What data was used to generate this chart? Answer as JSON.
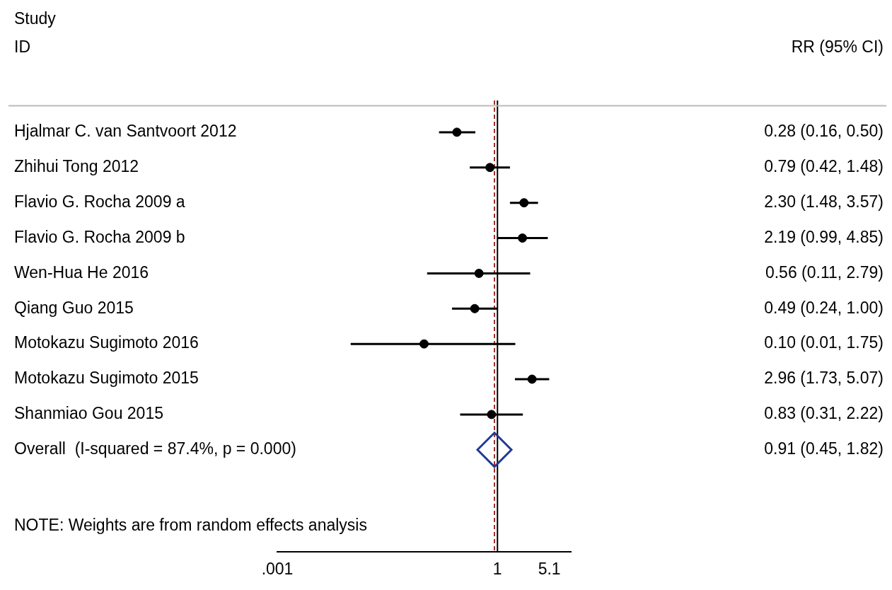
{
  "chart_data": {
    "type": "scatter",
    "orientation": "horizontal",
    "categories": [
      "Hjalmar C. van Santvoort 2012",
      "Zhihui Tong 2012",
      "Flavio G. Rocha 2009 a",
      "Flavio G. Rocha 2009 b",
      "Wen-Hua He 2016",
      "Qiang Guo 2015",
      "Motokazu Sugimoto 2016",
      "Motokazu Sugimoto 2015",
      "Shanmiao Gou 2015",
      "Overall  (I-squared = 87.4%, p = 0.000)"
    ],
    "series": [
      {
        "color": "#000000",
        "marker": "circle",
        "values": [
          0.28,
          0.79,
          2.3,
          2.19,
          0.56,
          0.49,
          0.1,
          2.96,
          0.83,
          null
        ],
        "errors": [
          [
            0.16,
            0.5
          ],
          [
            0.42,
            1.48
          ],
          [
            1.48,
            3.57
          ],
          [
            0.99,
            4.85
          ],
          [
            0.11,
            2.79
          ],
          [
            0.24,
            1.0
          ],
          [
            0.01,
            1.75
          ],
          [
            1.73,
            5.07
          ],
          [
            0.31,
            2.22
          ],
          null
        ],
        "value_labels": [
          "0.28 (0.16, 0.50)",
          "0.79 (0.42, 1.48)",
          "2.30 (1.48, 3.57)",
          "2.19 (0.99, 4.85)",
          "0.56 (0.11, 2.79)",
          "0.49 (0.24, 1.00)",
          "0.10 (0.01, 1.75)",
          "2.96 (1.73, 5.07)",
          "0.83 (0.31, 2.22)",
          null
        ]
      },
      {
        "color": "#1f3a93",
        "marker": "diamond",
        "values": [
          null,
          null,
          null,
          null,
          null,
          null,
          null,
          null,
          null,
          0.91
        ]
      }
    ],
    "log": "x",
    "xlim": [
      0.001,
      10
    ],
    "xticks": [
      {
        "value": 0.001,
        "label": ".001"
      },
      1,
      5.1
    ],
    "ref_lines": [
      {
        "axis": "x",
        "value": 1,
        "color": "#000000",
        "line_style": "solid"
      },
      {
        "axis": "x",
        "value": 0.91,
        "color": "#a0302e",
        "line_style": "dashed"
      }
    ],
    "grid": false,
    "legend": false,
    "annotations": [
      "Study",
      "ID",
      "RR (95% CI)",
      "NOTE: Weights are from random effects analysis",
      "0.91 (0.45, 1.82)"
    ]
  }
}
